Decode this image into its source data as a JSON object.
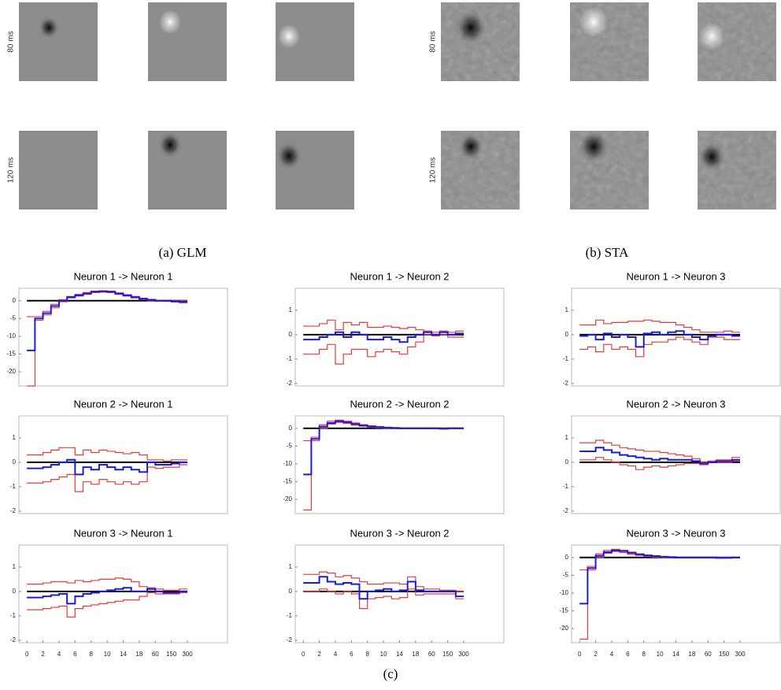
{
  "panels": [
    {
      "caption": "(a) GLM",
      "row_labels": [
        "80 ms",
        "120 ms"
      ]
    },
    {
      "caption": "(b) STA",
      "row_labels": [
        "80 ms",
        "120 ms"
      ]
    },
    {
      "caption": "(c)"
    }
  ],
  "chart_data": [
    {
      "type": "line",
      "title": "Neuron 1 -> Neuron 1",
      "x": [
        0,
        0.5,
        1,
        1.5,
        2,
        2.5,
        3,
        3.5,
        4,
        4.5,
        5,
        5.5,
        6,
        6.5,
        7,
        7.5,
        8,
        8.5,
        9,
        9.5
      ],
      "xlim": [
        -0.5,
        12.5
      ],
      "ylim": [
        -24,
        3.5
      ],
      "yticks": [
        0,
        -5,
        -10,
        -15,
        -20
      ],
      "reference_line": 0,
      "series": [
        {
          "color": "#e83a3a",
          "values": [
            -4.5,
            -4.5,
            -3,
            -1,
            0.3,
            1.2,
            1.8,
            2.3,
            2.7,
            2.8,
            2.7,
            2.2,
            1.7,
            1.2,
            0.7,
            0.4,
            0.1,
            0.1,
            0,
            0
          ]
        },
        {
          "color": "#e83a3a",
          "values": [
            -24,
            -5.5,
            -4,
            -2,
            -0.3,
            0.8,
            1.3,
            1.8,
            2.3,
            2.4,
            2.3,
            1.8,
            1.3,
            0.8,
            0.3,
            0,
            -0.1,
            -0.2,
            -0.4,
            -0.6
          ]
        },
        {
          "color": "#1a1ae0",
          "values": [
            -14,
            -5,
            -3.5,
            -1.5,
            0,
            1,
            1.5,
            2,
            2.5,
            2.6,
            2.5,
            2,
            1.5,
            1,
            0.5,
            0.2,
            0,
            0,
            -0.2,
            -0.3
          ]
        }
      ]
    },
    {
      "type": "line",
      "title": "Neuron 1 -> Neuron 2",
      "x": [
        0,
        0.5,
        1,
        1.5,
        2,
        2.5,
        3,
        3.5,
        4,
        4.5,
        5,
        5.5,
        6,
        6.5,
        7,
        7.5,
        8,
        8.5,
        9,
        9.5
      ],
      "xlim": [
        -0.5,
        12.5
      ],
      "ylim": [
        -2.1,
        1.9
      ],
      "yticks": [
        1,
        0,
        -1,
        -2
      ],
      "reference_line": 0,
      "series": [
        {
          "color": "#e83a3a",
          "values": [
            0.35,
            0.35,
            0.45,
            0.6,
            0.2,
            0.5,
            0.4,
            0.5,
            0.3,
            0.3,
            0.35,
            0.3,
            0.25,
            0.3,
            0.2,
            0.15,
            0.1,
            0.15,
            0.1,
            0.15
          ]
        },
        {
          "color": "#e83a3a",
          "values": [
            -0.8,
            -0.8,
            -0.6,
            -0.4,
            -1.2,
            -0.8,
            -0.6,
            -0.6,
            -0.9,
            -0.7,
            -0.6,
            -0.7,
            -0.8,
            -0.5,
            -0.3,
            0,
            -0.05,
            0,
            -0.1,
            -0.1
          ]
        },
        {
          "color": "#1a1ae0",
          "values": [
            -0.2,
            -0.2,
            -0.1,
            0,
            0.1,
            -0.1,
            0.1,
            0,
            -0.2,
            -0.2,
            -0.1,
            -0.2,
            -0.3,
            -0.1,
            0,
            0.1,
            0,
            0.1,
            0,
            0.05
          ]
        }
      ]
    },
    {
      "type": "line",
      "title": "Neuron 1 -> Neuron 3",
      "x": [
        0,
        0.5,
        1,
        1.5,
        2,
        2.5,
        3,
        3.5,
        4,
        4.5,
        5,
        5.5,
        6,
        6.5,
        7,
        7.5,
        8,
        8.5,
        9,
        9.5
      ],
      "xlim": [
        -0.5,
        12.5
      ],
      "ylim": [
        -2.1,
        1.9
      ],
      "yticks": [
        1,
        0,
        -1,
        -2
      ],
      "reference_line": 0,
      "series": [
        {
          "color": "#e83a3a",
          "values": [
            0.4,
            0.4,
            0.6,
            0.45,
            0.5,
            0.5,
            0.55,
            0.55,
            0.6,
            0.55,
            0.5,
            0.5,
            0.4,
            0.3,
            0.2,
            0.1,
            0.1,
            0.1,
            0.15,
            0.1
          ]
        },
        {
          "color": "#e83a3a",
          "values": [
            -0.6,
            -0.5,
            -0.7,
            -0.4,
            -0.6,
            -0.5,
            -0.6,
            -0.9,
            -0.4,
            -0.3,
            -0.3,
            -0.2,
            -0.1,
            -0.2,
            -0.3,
            -0.4,
            -0.1,
            -0.1,
            -0.2,
            -0.2
          ]
        },
        {
          "color": "#1a1ae0",
          "values": [
            -0.05,
            0,
            -0.2,
            0.05,
            -0.1,
            0,
            -0.1,
            -0.5,
            0.05,
            0.1,
            0,
            0.1,
            0.15,
            0,
            -0.1,
            -0.2,
            -0.05,
            0,
            0,
            -0.05
          ]
        }
      ]
    },
    {
      "type": "line",
      "title": "Neuron 2 -> Neuron 1",
      "x": [
        0,
        0.5,
        1,
        1.5,
        2,
        2.5,
        3,
        3.5,
        4,
        4.5,
        5,
        5.5,
        6,
        6.5,
        7,
        7.5,
        8,
        8.5,
        9,
        9.5
      ],
      "xlim": [
        -0.5,
        12.5
      ],
      "ylim": [
        -2.1,
        1.9
      ],
      "yticks": [
        1,
        0,
        -1,
        -2
      ],
      "reference_line": 0,
      "series": [
        {
          "color": "#e83a3a",
          "values": [
            0.3,
            0.3,
            0.4,
            0.5,
            0.6,
            0.6,
            0.3,
            0.5,
            0.4,
            0.5,
            0.45,
            0.4,
            0.35,
            0.4,
            0.3,
            0.1,
            0.1,
            0.05,
            0.1,
            0.1
          ]
        },
        {
          "color": "#e83a3a",
          "values": [
            -0.85,
            -0.85,
            -0.8,
            -0.7,
            -0.6,
            -0.5,
            -1.2,
            -0.8,
            -0.9,
            -0.7,
            -0.8,
            -0.9,
            -0.8,
            -0.9,
            -0.8,
            -0.2,
            -0.25,
            -0.2,
            -0.2,
            -0.1
          ]
        },
        {
          "color": "#1a1ae0",
          "values": [
            -0.25,
            -0.25,
            -0.2,
            -0.1,
            0,
            0.1,
            -0.5,
            -0.2,
            -0.3,
            -0.1,
            -0.2,
            -0.3,
            -0.2,
            -0.3,
            -0.4,
            0,
            -0.1,
            -0.1,
            -0.05,
            0
          ]
        }
      ]
    },
    {
      "type": "line",
      "title": "Neuron 2 -> Neuron 2",
      "x": [
        0,
        0.5,
        1,
        1.5,
        2,
        2.5,
        3,
        3.5,
        4,
        4.5,
        5,
        5.5,
        6,
        6.5,
        7,
        7.5,
        8,
        8.5,
        9,
        9.5
      ],
      "xlim": [
        -0.5,
        12.5
      ],
      "ylim": [
        -24,
        3.5
      ],
      "yticks": [
        0,
        -5,
        -10,
        -15,
        -20
      ],
      "reference_line": 0,
      "series": [
        {
          "color": "#e83a3a",
          "values": [
            -3.5,
            -2.5,
            1,
            2,
            2.3,
            2,
            1.5,
            1,
            0.7,
            0.5,
            0.3,
            0.2,
            0.1,
            0.1,
            0.1,
            0.1,
            0.1,
            0,
            0.1,
            0.1
          ]
        },
        {
          "color": "#e83a3a",
          "values": [
            -23,
            -3.5,
            0,
            1.2,
            1.7,
            1.4,
            0.9,
            0.6,
            0.3,
            0.1,
            0,
            -0.1,
            -0.1,
            -0.1,
            -0.1,
            -0.1,
            -0.1,
            -0.2,
            -0.1,
            -0.1
          ]
        },
        {
          "color": "#1a1ae0",
          "values": [
            -13,
            -3,
            0.5,
            1.5,
            2,
            1.7,
            1.2,
            0.8,
            0.5,
            0.3,
            0.2,
            0.1,
            0,
            0,
            0,
            0,
            0,
            -0.1,
            0,
            0
          ]
        }
      ]
    },
    {
      "type": "line",
      "title": "Neuron 2 -> Neuron 3",
      "x": [
        0,
        0.5,
        1,
        1.5,
        2,
        2.5,
        3,
        3.5,
        4,
        4.5,
        5,
        5.5,
        6,
        6.5,
        7,
        7.5,
        8,
        8.5,
        9,
        9.5
      ],
      "xlim": [
        -0.5,
        12.5
      ],
      "ylim": [
        -2.1,
        1.9
      ],
      "yticks": [
        1,
        0,
        -1,
        -2
      ],
      "reference_line": 0,
      "series": [
        {
          "color": "#e83a3a",
          "values": [
            0.8,
            0.8,
            0.9,
            0.8,
            0.7,
            0.6,
            0.55,
            0.5,
            0.45,
            0.45,
            0.4,
            0.35,
            0.3,
            0.25,
            0.15,
            0,
            0.05,
            0.1,
            0.1,
            0.2
          ]
        },
        {
          "color": "#e83a3a",
          "values": [
            0.1,
            0.1,
            0.2,
            0.1,
            0,
            -0.1,
            -0.15,
            -0.3,
            -0.2,
            -0.15,
            -0.2,
            -0.15,
            -0.1,
            -0.05,
            -0.05,
            -0.1,
            0,
            0,
            0,
            0.05
          ]
        },
        {
          "color": "#1a1ae0",
          "values": [
            0.45,
            0.45,
            0.6,
            0.5,
            0.4,
            0.3,
            0.25,
            0.2,
            0.15,
            0.1,
            0.15,
            0.1,
            0.1,
            0.1,
            0.05,
            -0.05,
            0,
            0.05,
            0.05,
            0.1
          ]
        }
      ]
    },
    {
      "type": "line",
      "title": "Neuron 3 -> Neuron 1",
      "x": [
        0,
        0.5,
        1,
        1.5,
        2,
        2.5,
        3,
        3.5,
        4,
        4.5,
        5,
        5.5,
        6,
        6.5,
        7,
        7.5,
        8,
        8.5,
        9,
        9.5
      ],
      "xlim": [
        -0.5,
        12.5
      ],
      "ylim": [
        -2.1,
        1.9
      ],
      "yticks": [
        1,
        0,
        -1,
        -2
      ],
      "reference_line": 0,
      "xticks": [
        0,
        {
          "value": 1,
          "label": "2"
        },
        {
          "value": 2,
          "label": "4"
        },
        {
          "value": 3,
          "label": "6"
        },
        {
          "value": 4,
          "label": "8"
        },
        {
          "value": 5,
          "label": "10"
        },
        {
          "value": 6,
          "label": "14"
        },
        {
          "value": 7,
          "label": "18"
        },
        {
          "value": 8,
          "label": "60"
        },
        {
          "value": 9,
          "label": "150"
        },
        {
          "value": 10,
          "label": "300"
        }
      ],
      "series": [
        {
          "color": "#e83a3a",
          "values": [
            0.3,
            0.3,
            0.35,
            0.4,
            0.4,
            0.35,
            0.45,
            0.4,
            0.45,
            0.5,
            0.5,
            0.55,
            0.5,
            0.4,
            0.2,
            0.15,
            0.1,
            0.05,
            0.05,
            0.1
          ]
        },
        {
          "color": "#e83a3a",
          "values": [
            -0.75,
            -0.75,
            -0.7,
            -0.65,
            -0.6,
            -1.05,
            -0.7,
            -0.6,
            -0.55,
            -0.5,
            -0.45,
            -0.4,
            -0.35,
            -0.35,
            -0.2,
            -0.05,
            -0.1,
            -0.1,
            -0.1,
            -0.05
          ]
        },
        {
          "color": "#1a1ae0",
          "values": [
            -0.25,
            -0.25,
            -0.2,
            -0.15,
            -0.1,
            -0.5,
            -0.2,
            -0.1,
            -0.05,
            0,
            0.05,
            0.1,
            0.15,
            0,
            0,
            0.1,
            0,
            -0.05,
            -0.05,
            0
          ]
        }
      ]
    },
    {
      "type": "line",
      "title": "Neuron 3 -> Neuron 2",
      "x": [
        0,
        0.5,
        1,
        1.5,
        2,
        2.5,
        3,
        3.5,
        4,
        4.5,
        5,
        5.5,
        6,
        6.5,
        7,
        7.5,
        8,
        8.5,
        9,
        9.5
      ],
      "xlim": [
        -0.5,
        12.5
      ],
      "ylim": [
        -2.1,
        1.9
      ],
      "yticks": [
        1,
        0,
        -1,
        -2
      ],
      "reference_line": 0,
      "xticks": [
        0,
        {
          "value": 1,
          "label": "2"
        },
        {
          "value": 2,
          "label": "4"
        },
        {
          "value": 3,
          "label": "6"
        },
        {
          "value": 4,
          "label": "8"
        },
        {
          "value": 5,
          "label": "10"
        },
        {
          "value": 6,
          "label": "14"
        },
        {
          "value": 7,
          "label": "18"
        },
        {
          "value": 8,
          "label": "60"
        },
        {
          "value": 9,
          "label": "150"
        },
        {
          "value": 10,
          "label": "300"
        }
      ],
      "series": [
        {
          "color": "#e83a3a",
          "values": [
            0.7,
            0.7,
            0.8,
            0.75,
            0.6,
            0.65,
            0.55,
            0.4,
            0.3,
            0.3,
            0.35,
            0.35,
            0.3,
            0.6,
            0.2,
            0.1,
            0.1,
            0.05,
            0.05,
            0
          ]
        },
        {
          "color": "#e83a3a",
          "values": [
            0,
            0,
            0.1,
            0,
            -0.1,
            0,
            -0.1,
            -0.7,
            -0.3,
            -0.25,
            -0.2,
            -0.3,
            -0.25,
            0.1,
            -0.15,
            -0.1,
            -0.1,
            -0.1,
            -0.1,
            -0.3
          ]
        },
        {
          "color": "#1a1ae0",
          "values": [
            0.35,
            0.35,
            0.6,
            0.4,
            0.3,
            0.35,
            0.3,
            -0.3,
            0,
            0.05,
            0.1,
            0,
            0.05,
            0.4,
            0.05,
            0,
            0,
            0,
            0,
            -0.2
          ]
        }
      ]
    },
    {
      "type": "line",
      "title": "Neuron 3 -> Neuron 3",
      "x": [
        0,
        0.5,
        1,
        1.5,
        2,
        2.5,
        3,
        3.5,
        4,
        4.5,
        5,
        5.5,
        6,
        6.5,
        7,
        7.5,
        8,
        8.5,
        9,
        9.5
      ],
      "xlim": [
        -0.5,
        12.5
      ],
      "ylim": [
        -24,
        3.5
      ],
      "yticks": [
        0,
        -5,
        -10,
        -15,
        -20
      ],
      "reference_line": 0,
      "xticks": [
        0,
        {
          "value": 1,
          "label": "2"
        },
        {
          "value": 2,
          "label": "4"
        },
        {
          "value": 3,
          "label": "6"
        },
        {
          "value": 4,
          "label": "8"
        },
        {
          "value": 5,
          "label": "10"
        },
        {
          "value": 6,
          "label": "14"
        },
        {
          "value": 7,
          "label": "18"
        },
        {
          "value": 8,
          "label": "60"
        },
        {
          "value": 9,
          "label": "150"
        },
        {
          "value": 10,
          "label": "300"
        }
      ],
      "series": [
        {
          "color": "#e83a3a",
          "values": [
            -3.5,
            -2.5,
            1,
            2,
            2.3,
            2,
            1.5,
            1,
            0.7,
            0.5,
            0.3,
            0.2,
            0.1,
            0.1,
            0.1,
            0.1,
            0.1,
            0,
            0.1,
            0.1
          ]
        },
        {
          "color": "#e83a3a",
          "values": [
            -23,
            -3.5,
            0,
            1.2,
            1.7,
            1.4,
            0.9,
            0.6,
            0.3,
            0.1,
            0,
            -0.1,
            -0.1,
            -0.1,
            -0.1,
            -0.1,
            -0.1,
            -0.2,
            -0.1,
            -0.1
          ]
        },
        {
          "color": "#1a1ae0",
          "values": [
            -13,
            -3,
            0.5,
            1.5,
            2,
            1.8,
            1.3,
            0.9,
            0.6,
            0.4,
            0.2,
            0.1,
            0,
            0,
            0,
            0,
            0,
            -0.1,
            -0.1,
            0
          ]
        }
      ]
    }
  ]
}
